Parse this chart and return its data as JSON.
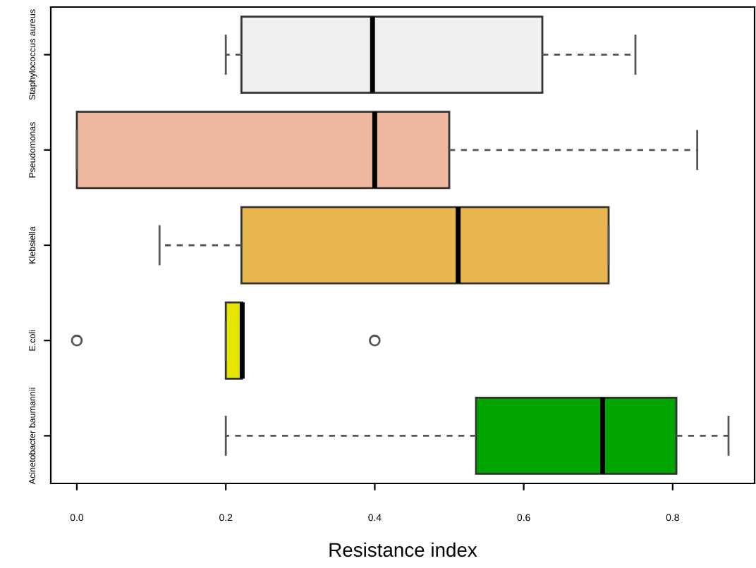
{
  "chart_data": {
    "type": "box",
    "orientation": "horizontal",
    "xlabel": "Resistance index",
    "categories": [
      "Staphylococcus aureus",
      "Pseudomonas",
      "Klebsiella",
      "E.coli",
      "Acinetobacter baumannii"
    ],
    "colors": [
      "#f0f0f0",
      "#eeb8a0",
      "#e8b64e",
      "#e5e500",
      "#00a500"
    ],
    "boxes": [
      {
        "low": 0.2,
        "q1": 0.221,
        "median": 0.397,
        "q3": 0.625,
        "high": 0.75
      },
      {
        "low": 0.0,
        "q1": 0.0,
        "median": 0.4,
        "q3": 0.5,
        "high": 0.833
      },
      {
        "low": 0.111,
        "q1": 0.221,
        "median": 0.512,
        "q3": 0.714,
        "high": 0.714
      },
      {
        "low": 0.2,
        "q1": 0.2,
        "median": 0.222,
        "q3": 0.222,
        "high": 0.222,
        "outliers": [
          0.0,
          0.4
        ]
      },
      {
        "low": 0.2,
        "q1": 0.536,
        "median": 0.706,
        "q3": 0.805,
        "high": 0.875
      }
    ],
    "xlim": [
      -0.035,
      0.91
    ],
    "xticks": [
      {
        "value": 0,
        "label": "0.0"
      },
      {
        "value": 0.2,
        "label": "0.2"
      },
      {
        "value": 0.4,
        "label": "0.4"
      },
      {
        "value": 0.6,
        "label": "0.6"
      },
      {
        "value": 0.8,
        "label": "0.8"
      }
    ],
    "grid": false
  }
}
